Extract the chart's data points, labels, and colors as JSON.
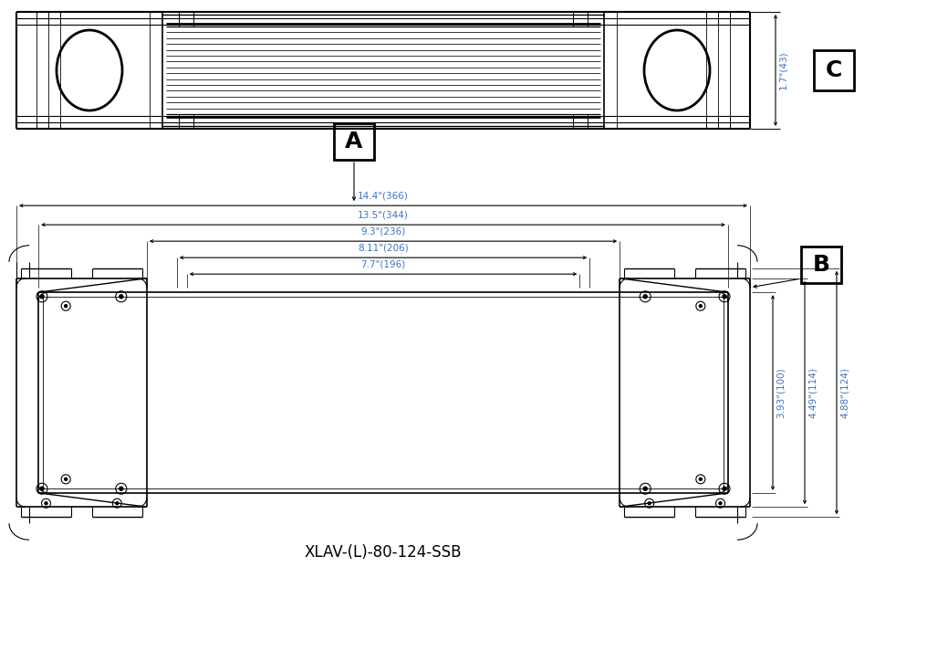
{
  "title": "XLAV-(L)-80-124-SSB",
  "bg_color": "#ffffff",
  "line_color": "#000000",
  "dim_color": "#4472c4",
  "label_A": "A",
  "label_B": "B",
  "label_C": "C",
  "dim_14_4": "14.4\"(366)",
  "dim_13_5": "13.5\"(344)",
  "dim_9_3": "9.3\"(236)",
  "dim_8_11": "8.11\"(206)",
  "dim_7_7": "7.7\"(196)",
  "dim_3_93": "3.93\"(100)",
  "dim_4_49": "4.49\"(114)",
  "dim_4_88": "4.88\"(124)",
  "dim_1_7": "1.7\"(43)"
}
